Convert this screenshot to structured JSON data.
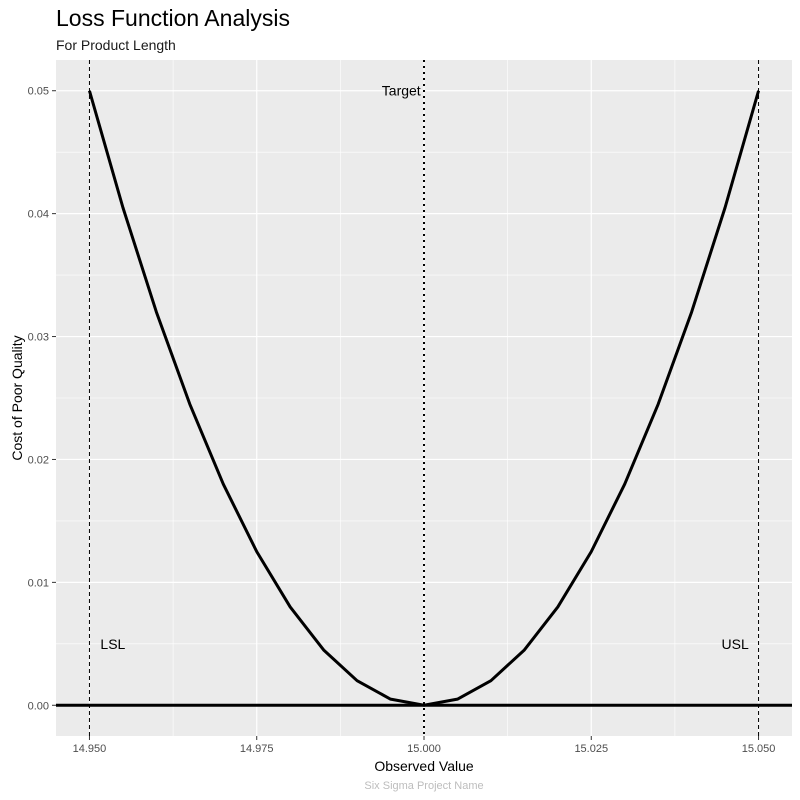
{
  "title": "Loss Function Analysis",
  "subtitle": "For Product Length",
  "caption": "Six Sigma Project Name",
  "chart_data": {
    "type": "line",
    "title": "Loss Function Analysis",
    "subtitle": "For Product Length",
    "xlabel": "Observed Value",
    "ylabel": "Cost of Poor Quality",
    "xlim": [
      14.945,
      15.055
    ],
    "ylim": [
      -0.0025,
      0.0525
    ],
    "x_ticks": [
      "14.950",
      "14.975",
      "15.000",
      "15.025",
      "15.050"
    ],
    "x_tick_values": [
      14.95,
      14.975,
      15.0,
      15.025,
      15.05
    ],
    "y_ticks": [
      "0.00",
      "0.01",
      "0.02",
      "0.03",
      "0.04",
      "0.05"
    ],
    "y_tick_values": [
      0.0,
      0.01,
      0.02,
      0.03,
      0.04,
      0.05
    ],
    "grid": true,
    "series": [
      {
        "x": [
          14.95,
          14.955,
          14.96,
          14.965,
          14.97,
          14.975,
          14.98,
          14.985,
          14.99,
          14.995,
          15.0,
          15.005,
          15.01,
          15.015,
          15.02,
          15.025,
          15.03,
          15.035,
          15.04,
          15.045,
          15.05
        ],
        "y": [
          0.05,
          0.0405,
          0.032,
          0.0245,
          0.018,
          0.0125,
          0.008,
          0.0045,
          0.002,
          0.0005,
          0.0,
          0.0005,
          0.002,
          0.0045,
          0.008,
          0.0125,
          0.018,
          0.0245,
          0.032,
          0.0405,
          0.05
        ]
      }
    ],
    "reference_lines": [
      {
        "axis": "x",
        "value": 14.95,
        "style": "dashed"
      },
      {
        "axis": "x",
        "value": 15.0,
        "style": "dotted"
      },
      {
        "axis": "x",
        "value": 15.05,
        "style": "dashed"
      },
      {
        "axis": "y",
        "value": 0.0,
        "style": "solid"
      }
    ],
    "annotations": [
      {
        "text": "LSL",
        "x": 14.9535,
        "y": 0.005
      },
      {
        "text": "Target",
        "x": 14.9966,
        "y": 0.05
      },
      {
        "text": "USL",
        "x": 15.0465,
        "y": 0.005
      }
    ],
    "colors": {
      "panel_background": "#ebebeb",
      "grid": "#ffffff",
      "line": "#000000"
    }
  }
}
